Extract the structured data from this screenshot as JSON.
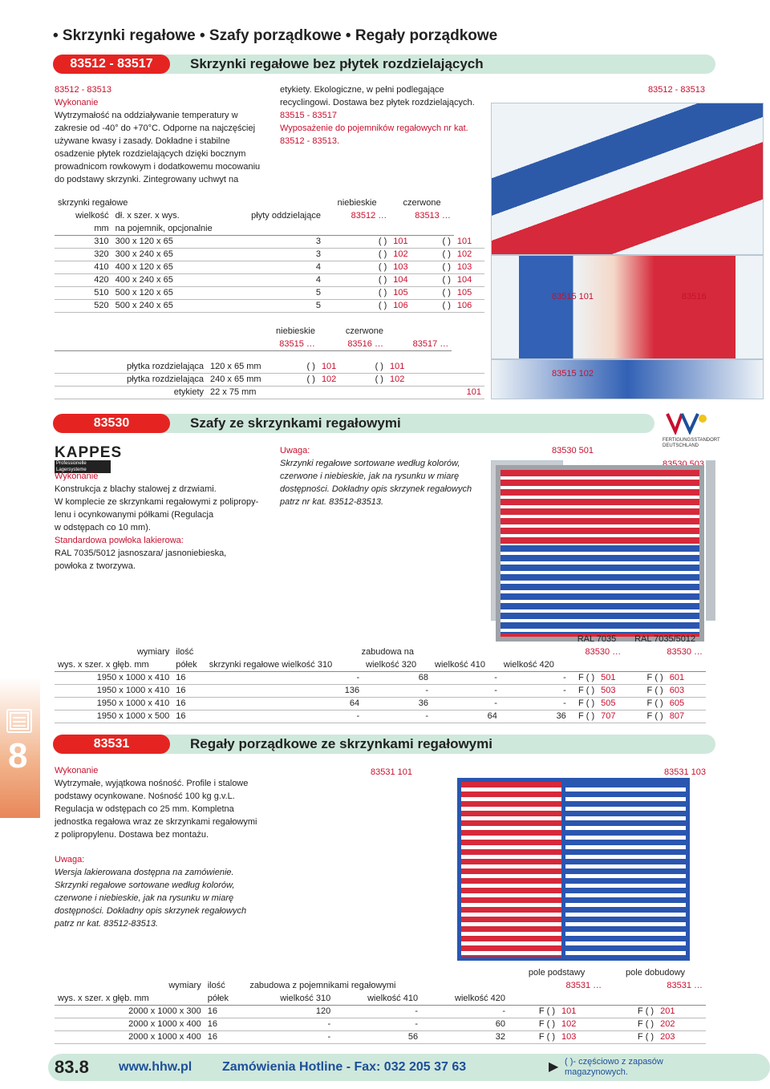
{
  "header": {
    "title": "• Skrzynki regałowe • Szafy porządkowe • Regały porządkowe"
  },
  "sec1": {
    "code": "83512 - 83517",
    "title": "Skrzynki regałowe bez płytek rozdzielających",
    "text_left": [
      "83512 - 83513",
      "Wykonanie",
      "Wytrzymałość na oddziaływanie temperatury w",
      "zakresie od -40° do +70°C. Odporne na najczęściej",
      "używane kwasy i zasady. Dokładne i stabilne",
      "osadzenie płytek rozdzielających dzięki bocznym",
      "prowadnicom rowkowym i dodatkowemu mocowaniu",
      "do podstawy skrzynki. Zintegrowany uchwyt na"
    ],
    "text_mid": [
      "etykiety. Ekologiczne, w pełni podlegające",
      "recyclingowi. Dostawa bez płytek rozdzielających.",
      "",
      "83515 - 83517",
      "Wyposażenie do pojemników regałowych nr kat.",
      "83512 - 83513."
    ],
    "img_label_top": "83512 - 83513",
    "img_label_a": "83515 101",
    "img_label_b": "83516",
    "img_label_c": "83515 102"
  },
  "table1": {
    "h1": [
      "skrzynki regałowe",
      "niebieskie",
      "czerwone"
    ],
    "h2": [
      "wielkość",
      "dł. x szer. x wys.",
      "płyty oddzielające",
      "83512 …",
      "83513 …"
    ],
    "h3": [
      "mm",
      "na pojemnik, opcjonalnie"
    ],
    "rows": [
      [
        "310",
        "300 x 120 x 65",
        "3",
        "( )",
        "101",
        "( )",
        "101"
      ],
      [
        "320",
        "300 x 240 x 65",
        "3",
        "( )",
        "102",
        "( )",
        "102"
      ],
      [
        "410",
        "400 x 120 x 65",
        "4",
        "( )",
        "103",
        "( )",
        "103"
      ],
      [
        "420",
        "400 x 240 x 65",
        "4",
        "( )",
        "104",
        "( )",
        "104"
      ],
      [
        "510",
        "500 x 120 x 65",
        "5",
        "( )",
        "105",
        "( )",
        "105"
      ],
      [
        "520",
        "500 x 240 x 65",
        "5",
        "( )",
        "106",
        "( )",
        "106"
      ]
    ]
  },
  "table2": {
    "h1": [
      "niebieskie",
      "czerwone"
    ],
    "h2": [
      "83515 …",
      "83516 …",
      "83517 …"
    ],
    "rows": [
      [
        "płytka rozdzielająca",
        "120 x 65 mm",
        "( )",
        "101",
        "( )",
        "101",
        ""
      ],
      [
        "płytka rozdzielająca",
        "240 x 65 mm",
        "( )",
        "102",
        "( )",
        "102",
        ""
      ],
      [
        "etykiety",
        "22 x 75 mm",
        "",
        "",
        "",
        "",
        "101"
      ]
    ]
  },
  "sec2": {
    "code": "83530",
    "title": "Szafy ze skrzynkami regałowymi",
    "brand": "KAPPES",
    "brand_sub": "Professionelle Lagersysteme",
    "badge": "FERTIGUNGSSTANDORT DEUTSCHLAND",
    "left": [
      "Wykonanie",
      "Konstrukcja z blachy stalowej z drzwiami.",
      "W komplecie ze skrzynkami regałowymi z polipropy-",
      "lenu i ocynkowanymi półkami (Regulacja",
      "w odstępach co 10 mm).",
      "Standardowa powłoka lakierowa:",
      "RAL 7035/5012 jasnoszara/ jasnoniebieska,",
      "powłoka z tworzywa."
    ],
    "note": [
      "Uwaga:",
      "Skrzynki regałowe sortowane według kolorów,",
      "czerwone i niebieskie, jak na rysunku w miarę",
      "dostępności. Dokładny opis skrzynek regałowych",
      "patrz nr kat. 83512-83513."
    ],
    "img_a": "83530 501",
    "img_b": "83530 503"
  },
  "table3": {
    "h0": [
      "RAL 7035",
      "RAL 7035/5012"
    ],
    "h1": [
      "wymiary",
      "ilość",
      "zabudowa na",
      "83530 …",
      "83530 …"
    ],
    "h2": [
      "wys. x szer. x głęb. mm",
      "półek",
      "skrzynki regałowe wielkość 310",
      "wielkość 320",
      "wielkość 410",
      "wielkość 420"
    ],
    "rows": [
      [
        "1950 x 1000 x 410",
        "16",
        "-",
        "68",
        "-",
        "-",
        "F ( )",
        "501",
        "F ( )",
        "601"
      ],
      [
        "1950 x 1000 x 410",
        "16",
        "136",
        "-",
        "-",
        "-",
        "F ( )",
        "503",
        "F ( )",
        "603"
      ],
      [
        "1950 x 1000 x 410",
        "16",
        "64",
        "36",
        "-",
        "-",
        "F ( )",
        "505",
        "F ( )",
        "605"
      ],
      [
        "1950 x 1000 x 500",
        "16",
        "-",
        "-",
        "64",
        "36",
        "F ( )",
        "707",
        "F ( )",
        "807"
      ]
    ]
  },
  "sec3": {
    "code": "83531",
    "title": "Regały porządkowe ze skrzynkami regałowymi",
    "left": [
      "Wykonanie",
      "Wytrzymałe, wyjątkowa nośność. Profile i stalowe",
      "podstawy ocynkowane. Nośność 100 kg g.v.L.",
      "Regulacja w odstępach co 25 mm. Kompletna",
      "jednostka regałowa wraz ze skrzynkami regałowymi",
      "z polipropylenu. Dostawa bez montażu."
    ],
    "note": [
      "Uwaga:",
      "Wersja lakierowana dostępna na zamówienie.",
      "Skrzynki regałowe sortowane według kolorów,",
      "czerwone i niebieskie, jak na rysunku w miarę",
      "dostępności. Dokładny opis skrzynek regałowych",
      "patrz nr kat. 83512-83513."
    ],
    "img_a": "83531 101",
    "img_b": "83531 103"
  },
  "table4": {
    "h0": [
      "pole podstawy",
      "pole dobudowy"
    ],
    "h1": [
      "wymiary",
      "ilość",
      "zabudowa z pojemnikami regałowymi",
      "83531 …",
      "83531 …"
    ],
    "h2": [
      "wys. x szer. x głęb. mm",
      "półek",
      "wielkość 310",
      "wielkość 410",
      "wielkość 420"
    ],
    "rows": [
      [
        "2000 x 1000 x 300",
        "16",
        "120",
        "-",
        "-",
        "F ( )",
        "101",
        "F ( )",
        "201"
      ],
      [
        "2000 x 1000 x 400",
        "16",
        "-",
        "-",
        "60",
        "F ( )",
        "102",
        "F ( )",
        "202"
      ],
      [
        "2000 x 1000 x 400",
        "16",
        "-",
        "56",
        "32",
        "F ( )",
        "103",
        "F ( )",
        "203"
      ]
    ]
  },
  "side": {
    "number": "8"
  },
  "footer": {
    "page": "83.8",
    "url": "www.hhw.pl",
    "hotline": "Zamówienia Hotline - Fax: 032 205 37 63",
    "note": "( )- częściowo z zapasów magazynowych."
  },
  "colors": {
    "red": "#c8102e",
    "blue": "#2a56b0",
    "green_bar": "#cfe8dc"
  }
}
